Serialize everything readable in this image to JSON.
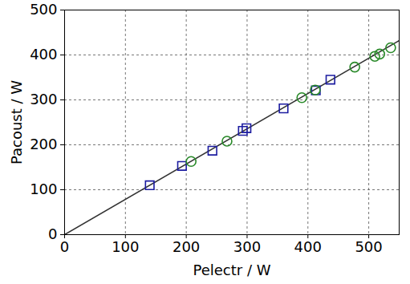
{
  "chart_data": {
    "type": "scatter",
    "x_label": "Pelectr / W",
    "y_label": "Pacoust / W",
    "xlim": [
      0,
      550
    ],
    "ylim": [
      0,
      500
    ],
    "xticks": [
      0,
      100,
      200,
      300,
      400,
      500
    ],
    "yticks": [
      0,
      100,
      200,
      300,
      400,
      500
    ],
    "grid": true,
    "series": [
      {
        "type": "line",
        "color": "#333333",
        "line_style": "solid",
        "x": [
          0,
          550
        ],
        "values": [
          0,
          432
        ]
      },
      {
        "type": "scatter",
        "color": "#1c1ca0",
        "marker": "square",
        "x": [
          140,
          193,
          243,
          293,
          299,
          360,
          413,
          437
        ],
        "values": [
          110,
          153,
          187,
          231,
          237,
          281,
          321,
          345
        ]
      },
      {
        "type": "scatter",
        "color": "#2a8a2a",
        "marker": "circle",
        "x": [
          208,
          267,
          390,
          412,
          477,
          510,
          518,
          536
        ],
        "values": [
          163,
          208,
          305,
          322,
          373,
          397,
          402,
          416
        ]
      }
    ]
  }
}
